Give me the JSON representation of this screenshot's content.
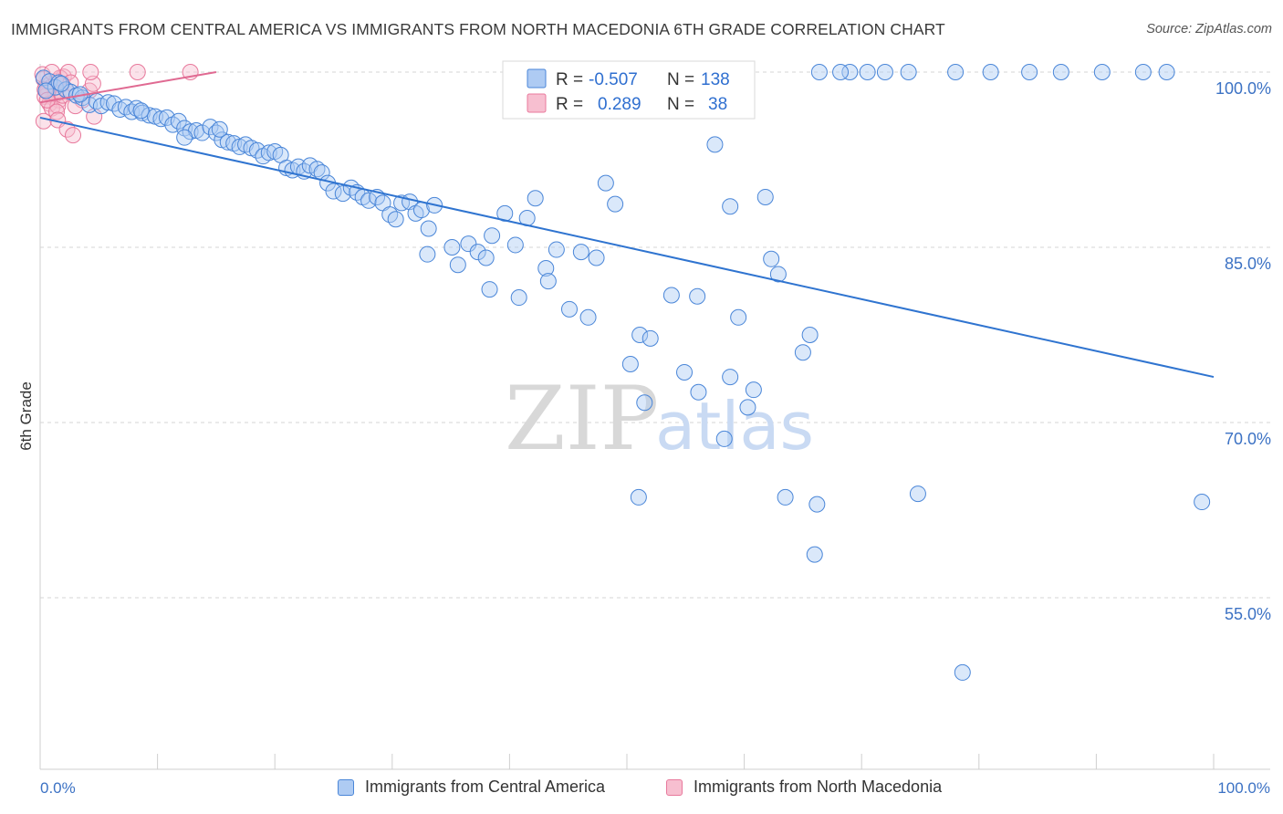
{
  "title": "IMMIGRANTS FROM CENTRAL AMERICA VS IMMIGRANTS FROM NORTH MACEDONIA 6TH GRADE CORRELATION CHART",
  "source": "Source: ZipAtlas.com",
  "watermark": {
    "zip": "ZIP",
    "atlas": "atlas"
  },
  "colors": {
    "blue": "#4a86d8",
    "blue_fill": "#aecbf3",
    "blue_line": "#2f74d0",
    "pink": "#e8799c",
    "pink_fill": "#f7bfd0",
    "pink_line": "#e06a92",
    "tick_label": "#3c72c4",
    "grid": "#d6d6d6"
  },
  "legend_top": {
    "rows": [
      {
        "r_label": "R =",
        "r_value": "-0.507",
        "n_label": "N =",
        "n_value": "138"
      },
      {
        "r_label": "R =",
        "r_value": "0.289",
        "n_label": "N =",
        "n_value": "38"
      }
    ]
  },
  "legend_bottom": [
    "Immigrants from Central America",
    "Immigrants from North Macedonia"
  ],
  "chart_data": {
    "type": "scatter",
    "title": "IMMIGRANTS FROM CENTRAL AMERICA VS IMMIGRANTS FROM NORTH MACEDONIA 6TH GRADE CORRELATION CHART",
    "xlabel": "",
    "ylabel": "6th Grade",
    "xlim": [
      0,
      100
    ],
    "ylim": [
      40,
      102
    ],
    "x_tick_labels": [
      "0.0%",
      "100.0%"
    ],
    "y_ticks": [
      55,
      70,
      85,
      100
    ],
    "y_tick_labels": [
      "55.0%",
      "70.0%",
      "85.0%",
      "100.0%"
    ],
    "grid": "horizontal dashed",
    "series": [
      {
        "name": "Immigrants from Central America",
        "color": "#4a86d8",
        "r": "-0.507",
        "n": "138",
        "trend": {
          "x": [
            0,
            100
          ],
          "y": [
            96.1,
            73.9
          ]
        },
        "points": [
          [
            0.3,
            99.5
          ],
          [
            0.8,
            99.2
          ],
          [
            1.3,
            98.7
          ],
          [
            1.6,
            99.1
          ],
          [
            2.2,
            98.5
          ],
          [
            2.6,
            98.3
          ],
          [
            3.1,
            98.0
          ],
          [
            3.6,
            97.8
          ],
          [
            4.2,
            97.2
          ],
          [
            4.8,
            97.5
          ],
          [
            5.2,
            97.1
          ],
          [
            5.8,
            97.4
          ],
          [
            6.3,
            97.3
          ],
          [
            6.8,
            96.8
          ],
          [
            7.3,
            97.0
          ],
          [
            7.8,
            96.6
          ],
          [
            8.2,
            96.9
          ],
          [
            8.7,
            96.5
          ],
          [
            9.3,
            96.3
          ],
          [
            9.8,
            96.2
          ],
          [
            10.3,
            96.0
          ],
          [
            10.8,
            96.1
          ],
          [
            11.3,
            95.5
          ],
          [
            11.8,
            95.8
          ],
          [
            12.3,
            95.2
          ],
          [
            12.8,
            94.9
          ],
          [
            13.3,
            95.0
          ],
          [
            13.8,
            94.8
          ],
          [
            14.5,
            95.3
          ],
          [
            15.0,
            94.8
          ],
          [
            15.5,
            94.2
          ],
          [
            16.0,
            94.0
          ],
          [
            16.5,
            93.9
          ],
          [
            17.0,
            93.6
          ],
          [
            17.5,
            93.8
          ],
          [
            18.0,
            93.5
          ],
          [
            18.5,
            93.3
          ],
          [
            19.0,
            92.8
          ],
          [
            19.5,
            93.1
          ],
          [
            20.0,
            93.2
          ],
          [
            20.5,
            92.9
          ],
          [
            21.0,
            91.8
          ],
          [
            21.5,
            91.6
          ],
          [
            22.0,
            91.9
          ],
          [
            22.5,
            91.5
          ],
          [
            23.0,
            92.0
          ],
          [
            23.6,
            91.7
          ],
          [
            24.0,
            91.4
          ],
          [
            24.5,
            90.5
          ],
          [
            25.0,
            89.8
          ],
          [
            25.8,
            89.6
          ],
          [
            26.5,
            90.1
          ],
          [
            27.0,
            89.7
          ],
          [
            27.5,
            89.3
          ],
          [
            28.0,
            89.0
          ],
          [
            28.7,
            89.3
          ],
          [
            29.2,
            88.8
          ],
          [
            29.8,
            87.8
          ],
          [
            30.3,
            87.4
          ],
          [
            30.8,
            88.8
          ],
          [
            31.5,
            88.9
          ],
          [
            32.0,
            87.9
          ],
          [
            32.5,
            88.2
          ],
          [
            33.1,
            86.6
          ],
          [
            33.6,
            88.6
          ],
          [
            33.0,
            84.4
          ],
          [
            35.1,
            85.0
          ],
          [
            35.6,
            83.5
          ],
          [
            36.5,
            85.3
          ],
          [
            37.3,
            84.6
          ],
          [
            38.0,
            84.1
          ],
          [
            38.5,
            86.0
          ],
          [
            38.3,
            81.4
          ],
          [
            39.6,
            87.9
          ],
          [
            40.5,
            85.2
          ],
          [
            41.5,
            87.5
          ],
          [
            40.8,
            80.7
          ],
          [
            42.2,
            89.2
          ],
          [
            43.1,
            83.2
          ],
          [
            43.3,
            82.1
          ],
          [
            44.0,
            84.8
          ],
          [
            45.1,
            79.7
          ],
          [
            46.1,
            84.6
          ],
          [
            46.7,
            79.0
          ],
          [
            47.4,
            84.1
          ],
          [
            48.2,
            90.5
          ],
          [
            49.0,
            88.7
          ],
          [
            50.3,
            75.0
          ],
          [
            51.1,
            77.5
          ],
          [
            51.5,
            71.7
          ],
          [
            52.0,
            77.2
          ],
          [
            51.0,
            63.6
          ],
          [
            53.8,
            80.9
          ],
          [
            54.9,
            74.3
          ],
          [
            56.1,
            72.6
          ],
          [
            56.0,
            80.8
          ],
          [
            57.5,
            93.8
          ],
          [
            58.3,
            68.6
          ],
          [
            58.8,
            88.5
          ],
          [
            58.8,
            73.9
          ],
          [
            59.5,
            79.0
          ],
          [
            60.3,
            71.3
          ],
          [
            60.8,
            72.8
          ],
          [
            61.8,
            89.3
          ],
          [
            62.3,
            84.0
          ],
          [
            62.9,
            82.7
          ],
          [
            63.5,
            63.6
          ],
          [
            65.0,
            76.0
          ],
          [
            65.6,
            77.5
          ],
          [
            66.2,
            63.0
          ],
          [
            66.0,
            58.7
          ],
          [
            66.4,
            100.0
          ],
          [
            69.0,
            100.0
          ],
          [
            68.2,
            100.0
          ],
          [
            70.5,
            100.0
          ],
          [
            72.0,
            100.0
          ],
          [
            74.0,
            100.0
          ],
          [
            78.0,
            100.0
          ],
          [
            78.6,
            48.6
          ],
          [
            74.8,
            63.9
          ],
          [
            81.0,
            100.0
          ],
          [
            84.3,
            100.0
          ],
          [
            87.0,
            100.0
          ],
          [
            90.5,
            100.0
          ],
          [
            94.0,
            100.0
          ],
          [
            96.0,
            100.0
          ],
          [
            99.0,
            63.2
          ],
          [
            8.6,
            96.7
          ],
          [
            12.3,
            94.4
          ],
          [
            15.3,
            95.1
          ],
          [
            0.5,
            98.4
          ],
          [
            1.8,
            99.0
          ],
          [
            3.4,
            98.1
          ]
        ]
      },
      {
        "name": "Immigrants from North Macedonia",
        "color": "#e8799c",
        "r": "0.289",
        "n": "38",
        "trend": {
          "x": [
            0,
            15
          ],
          "y": [
            97.4,
            100.0
          ]
        },
        "points": [
          [
            0.3,
            99.4
          ],
          [
            0.5,
            98.8
          ],
          [
            0.7,
            98.2
          ],
          [
            0.9,
            99.0
          ],
          [
            1.1,
            97.8
          ],
          [
            1.2,
            98.6
          ],
          [
            1.4,
            99.2
          ],
          [
            1.6,
            97.6
          ],
          [
            1.8,
            98.9
          ],
          [
            2.0,
            99.6
          ],
          [
            2.2,
            98.4
          ],
          [
            0.4,
            97.9
          ],
          [
            0.6,
            98.3
          ],
          [
            0.8,
            97.3
          ],
          [
            1.0,
            96.9
          ],
          [
            1.3,
            98.1
          ],
          [
            1.5,
            97.1
          ],
          [
            1.7,
            99.5
          ],
          [
            1.9,
            98.0
          ],
          [
            2.4,
            100.0
          ],
          [
            2.6,
            99.1
          ],
          [
            0.2,
            99.8
          ],
          [
            0.4,
            98.5
          ],
          [
            0.6,
            97.6
          ],
          [
            1.0,
            100.0
          ],
          [
            1.4,
            96.6
          ],
          [
            0.3,
            95.8
          ],
          [
            1.5,
            95.9
          ],
          [
            2.3,
            95.1
          ],
          [
            2.8,
            94.6
          ],
          [
            3.6,
            97.6
          ],
          [
            4.2,
            98.4
          ],
          [
            4.5,
            99.0
          ],
          [
            4.6,
            96.2
          ],
          [
            4.3,
            100.0
          ],
          [
            8.3,
            100.0
          ],
          [
            12.8,
            100.0
          ],
          [
            3.0,
            97.1
          ]
        ]
      }
    ]
  }
}
